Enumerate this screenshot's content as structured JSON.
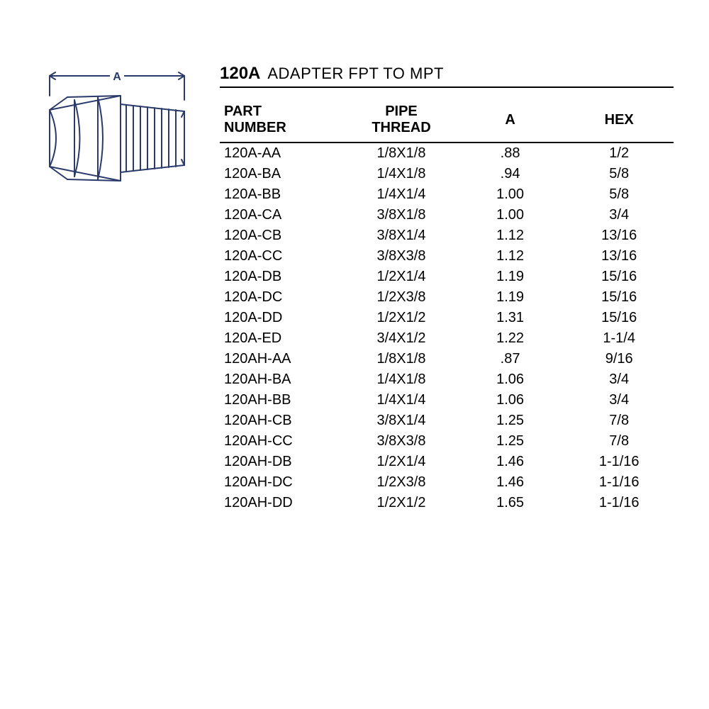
{
  "title": {
    "code": "120A",
    "desc": "ADAPTER FPT TO MPT"
  },
  "diagram": {
    "label_a": "A",
    "stroke": "#2a3a6a",
    "stroke_width": 2
  },
  "table": {
    "columns": [
      {
        "key": "part",
        "line1": "PART",
        "line2": "NUMBER"
      },
      {
        "key": "thread",
        "line1": "PIPE",
        "line2": "THREAD"
      },
      {
        "key": "a",
        "line1": "",
        "line2": "A"
      },
      {
        "key": "hex",
        "line1": "",
        "line2": "HEX"
      }
    ],
    "rows": [
      {
        "part": "120A-AA",
        "thread": "1/8X1/8",
        "a": ".88",
        "hex": "1/2"
      },
      {
        "part": "120A-BA",
        "thread": "1/4X1/8",
        "a": ".94",
        "hex": "5/8"
      },
      {
        "part": "120A-BB",
        "thread": "1/4X1/4",
        "a": "1.00",
        "hex": "5/8"
      },
      {
        "part": "120A-CA",
        "thread": "3/8X1/8",
        "a": "1.00",
        "hex": "3/4"
      },
      {
        "part": "120A-CB",
        "thread": "3/8X1/4",
        "a": "1.12",
        "hex": "13/16"
      },
      {
        "part": "120A-CC",
        "thread": "3/8X3/8",
        "a": "1.12",
        "hex": "13/16"
      },
      {
        "part": "120A-DB",
        "thread": "1/2X1/4",
        "a": "1.19",
        "hex": "15/16"
      },
      {
        "part": "120A-DC",
        "thread": "1/2X3/8",
        "a": "1.19",
        "hex": "15/16"
      },
      {
        "part": "120A-DD",
        "thread": "1/2X1/2",
        "a": "1.31",
        "hex": "15/16"
      },
      {
        "part": "120A-ED",
        "thread": "3/4X1/2",
        "a": "1.22",
        "hex": "1-1/4"
      },
      {
        "part": "120AH-AA",
        "thread": "1/8X1/8",
        "a": ".87",
        "hex": "9/16"
      },
      {
        "part": "120AH-BA",
        "thread": "1/4X1/8",
        "a": "1.06",
        "hex": "3/4"
      },
      {
        "part": "120AH-BB",
        "thread": "1/4X1/4",
        "a": "1.06",
        "hex": "3/4"
      },
      {
        "part": "120AH-CB",
        "thread": "3/8X1/4",
        "a": "1.25",
        "hex": "7/8"
      },
      {
        "part": "120AH-CC",
        "thread": "3/8X3/8",
        "a": "1.25",
        "hex": "7/8"
      },
      {
        "part": "120AH-DB",
        "thread": "1/2X1/4",
        "a": "1.46",
        "hex": "1-1/16"
      },
      {
        "part": "120AH-DC",
        "thread": "1/2X3/8",
        "a": "1.46",
        "hex": "1-1/16"
      },
      {
        "part": "120AH-DD",
        "thread": "1/2X1/2",
        "a": "1.65",
        "hex": "1-1/16"
      }
    ]
  },
  "style": {
    "font_family": "Arial, Helvetica, sans-serif",
    "title_code_fontsize": 24,
    "title_desc_fontsize": 22,
    "table_fontsize": 20,
    "header_border_width": 2,
    "title_border_width": 2,
    "text_color": "#000000",
    "background_color": "#ffffff"
  }
}
